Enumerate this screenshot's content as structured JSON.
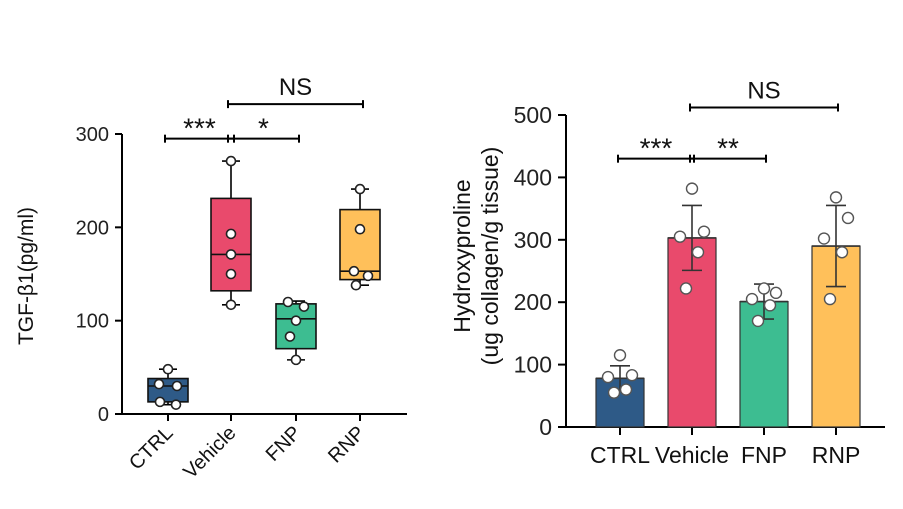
{
  "chart_data": [
    {
      "type": "box",
      "ylabel": "TGF-β1(pg/ml)",
      "ylim": [
        0,
        300
      ],
      "yticks": [
        0,
        100,
        200,
        300
      ],
      "categories": [
        "CTRL",
        "Vehicle",
        "FNP",
        "RNP"
      ],
      "colors": [
        "#2e5a87",
        "#e94a6c",
        "#3dbd91",
        "#ffc05a"
      ],
      "boxes": [
        {
          "name": "CTRL",
          "min": 10,
          "q1": 13,
          "median": 30,
          "q3": 38,
          "max": 48,
          "points": [
            48,
            32,
            30,
            13,
            10
          ]
        },
        {
          "name": "Vehicle",
          "min": 117,
          "q1": 132,
          "median": 171,
          "q3": 231,
          "max": 271,
          "points": [
            271,
            193,
            171,
            150,
            117
          ]
        },
        {
          "name": "FNP",
          "min": 58,
          "q1": 70,
          "median": 102,
          "q3": 118,
          "max": 121,
          "points": [
            120,
            115,
            100,
            83,
            58
          ]
        },
        {
          "name": "RNP",
          "min": 138,
          "q1": 144,
          "median": 153,
          "q3": 219,
          "max": 241,
          "points": [
            241,
            198,
            153,
            148,
            138
          ]
        }
      ],
      "significance": [
        {
          "from": 0,
          "to": 1,
          "label": "***",
          "level": 295
        },
        {
          "from": 1,
          "to": 2,
          "label": "*",
          "level": 295
        },
        {
          "from": 1,
          "to": 3,
          "label": "NS",
          "level": 332
        }
      ]
    },
    {
      "type": "bar",
      "ylabel": [
        "Hydroxyproline",
        "(ug collagen/g tissue)"
      ],
      "ylim": [
        0,
        500
      ],
      "yticks": [
        0,
        100,
        200,
        300,
        400,
        500
      ],
      "categories": [
        "CTRL",
        "Vehicle",
        "FNP",
        "RNP"
      ],
      "colors": [
        "#2e5a87",
        "#e94a6c",
        "#3dbd91",
        "#ffc05a"
      ],
      "values": [
        78,
        303,
        201,
        290
      ],
      "errors": [
        20,
        52,
        28,
        65
      ],
      "points": [
        [
          115,
          83,
          80,
          60,
          55
        ],
        [
          382,
          313,
          305,
          280,
          222
        ],
        [
          222,
          215,
          205,
          195,
          170
        ],
        [
          368,
          335,
          302,
          280,
          205
        ]
      ],
      "significance": [
        {
          "from": 0,
          "to": 1,
          "label": "***",
          "level": 430
        },
        {
          "from": 1,
          "to": 2,
          "label": "**",
          "level": 430
        },
        {
          "from": 1,
          "to": 3,
          "label": "NS",
          "level": 512
        }
      ]
    }
  ]
}
